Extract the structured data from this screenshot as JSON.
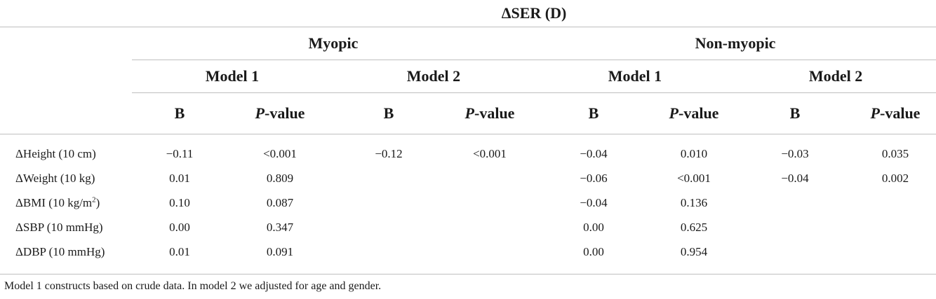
{
  "header": {
    "outcome": "ΔSER (D)",
    "groups": [
      "Myopic",
      "Non-myopic"
    ],
    "models": [
      "Model 1",
      "Model 2",
      "Model 1",
      "Model 2"
    ],
    "stat_b": "B",
    "stat_p_italic": "P",
    "stat_p_rest": "-value"
  },
  "rows": [
    {
      "label": "ΔHeight (10 cm)",
      "label_sup": "",
      "values": [
        "−0.11",
        "<0.001",
        "−0.12",
        "<0.001",
        "−0.04",
        "0.010",
        "−0.03",
        "0.035"
      ]
    },
    {
      "label": "ΔWeight (10 kg)",
      "label_sup": "",
      "values": [
        "0.01",
        "0.809",
        "",
        "",
        "−0.06",
        "<0.001",
        "−0.04",
        "0.002"
      ]
    },
    {
      "label": "ΔBMI (10 kg/m",
      "label_sup": "2",
      "label_end": ")",
      "values": [
        "0.10",
        "0.087",
        "",
        "",
        "−0.04",
        "0.136",
        "",
        ""
      ]
    },
    {
      "label": "ΔSBP (10 mmHg)",
      "label_sup": "",
      "values": [
        "0.00",
        "0.347",
        "",
        "",
        "0.00",
        "0.625",
        "",
        ""
      ]
    },
    {
      "label": "ΔDBP (10 mmHg)",
      "label_sup": "",
      "values": [
        "0.01",
        "0.091",
        "",
        "",
        "0.00",
        "0.954",
        "",
        ""
      ]
    }
  ],
  "footnote": "Model 1 constructs based on crude data. In model 2 we adjusted for age and gender."
}
